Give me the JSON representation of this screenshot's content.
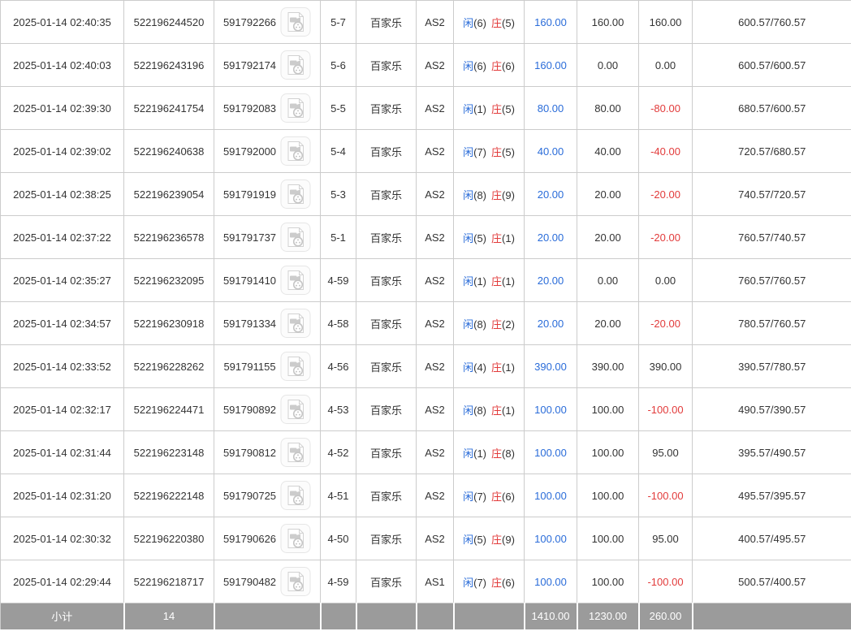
{
  "colors": {
    "accent_blue": "#2a6cd9",
    "loss_red": "#e23b3b",
    "subtotal_bg": "#9b9b9b",
    "row_border": "#cccccc",
    "text": "#333333"
  },
  "icons": {
    "row_video": "video-playback-icon"
  },
  "table": {
    "rows": [
      {
        "time": "2025-01-14 02:40:35",
        "order_no": "522196244520",
        "session_id": "591792266",
        "round": "5-7",
        "game": "百家乐",
        "table_code": "AS2",
        "result": {
          "player_label": "闲",
          "player_score": "(6)",
          "banker_label": "庄",
          "banker_score": "(5)"
        },
        "bet": "160.00",
        "valid_bet": "160.00",
        "win_loss": "160.00",
        "balance": "600.57/760.57"
      },
      {
        "time": "2025-01-14 02:40:03",
        "order_no": "522196243196",
        "session_id": "591792174",
        "round": "5-6",
        "game": "百家乐",
        "table_code": "AS2",
        "result": {
          "player_label": "闲",
          "player_score": "(6)",
          "banker_label": "庄",
          "banker_score": "(6)"
        },
        "bet": "160.00",
        "valid_bet": "0.00",
        "win_loss": "0.00",
        "balance": "600.57/600.57"
      },
      {
        "time": "2025-01-14 02:39:30",
        "order_no": "522196241754",
        "session_id": "591792083",
        "round": "5-5",
        "game": "百家乐",
        "table_code": "AS2",
        "result": {
          "player_label": "闲",
          "player_score": "(1)",
          "banker_label": "庄",
          "banker_score": "(5)"
        },
        "bet": "80.00",
        "valid_bet": "80.00",
        "win_loss": "-80.00",
        "balance": "680.57/600.57"
      },
      {
        "time": "2025-01-14 02:39:02",
        "order_no": "522196240638",
        "session_id": "591792000",
        "round": "5-4",
        "game": "百家乐",
        "table_code": "AS2",
        "result": {
          "player_label": "闲",
          "player_score": "(7)",
          "banker_label": "庄",
          "banker_score": "(5)"
        },
        "bet": "40.00",
        "valid_bet": "40.00",
        "win_loss": "-40.00",
        "balance": "720.57/680.57"
      },
      {
        "time": "2025-01-14 02:38:25",
        "order_no": "522196239054",
        "session_id": "591791919",
        "round": "5-3",
        "game": "百家乐",
        "table_code": "AS2",
        "result": {
          "player_label": "闲",
          "player_score": "(8)",
          "banker_label": "庄",
          "banker_score": "(9)"
        },
        "bet": "20.00",
        "valid_bet": "20.00",
        "win_loss": "-20.00",
        "balance": "740.57/720.57"
      },
      {
        "time": "2025-01-14 02:37:22",
        "order_no": "522196236578",
        "session_id": "591791737",
        "round": "5-1",
        "game": "百家乐",
        "table_code": "AS2",
        "result": {
          "player_label": "闲",
          "player_score": "(5)",
          "banker_label": "庄",
          "banker_score": "(1)"
        },
        "bet": "20.00",
        "valid_bet": "20.00",
        "win_loss": "-20.00",
        "balance": "760.57/740.57"
      },
      {
        "time": "2025-01-14 02:35:27",
        "order_no": "522196232095",
        "session_id": "591791410",
        "round": "4-59",
        "game": "百家乐",
        "table_code": "AS2",
        "result": {
          "player_label": "闲",
          "player_score": "(1)",
          "banker_label": "庄",
          "banker_score": "(1)"
        },
        "bet": "20.00",
        "valid_bet": "0.00",
        "win_loss": "0.00",
        "balance": "760.57/760.57"
      },
      {
        "time": "2025-01-14 02:34:57",
        "order_no": "522196230918",
        "session_id": "591791334",
        "round": "4-58",
        "game": "百家乐",
        "table_code": "AS2",
        "result": {
          "player_label": "闲",
          "player_score": "(8)",
          "banker_label": "庄",
          "banker_score": "(2)"
        },
        "bet": "20.00",
        "valid_bet": "20.00",
        "win_loss": "-20.00",
        "balance": "780.57/760.57"
      },
      {
        "time": "2025-01-14 02:33:52",
        "order_no": "522196228262",
        "session_id": "591791155",
        "round": "4-56",
        "game": "百家乐",
        "table_code": "AS2",
        "result": {
          "player_label": "闲",
          "player_score": "(4)",
          "banker_label": "庄",
          "banker_score": "(1)"
        },
        "bet": "390.00",
        "valid_bet": "390.00",
        "win_loss": "390.00",
        "balance": "390.57/780.57"
      },
      {
        "time": "2025-01-14 02:32:17",
        "order_no": "522196224471",
        "session_id": "591790892",
        "round": "4-53",
        "game": "百家乐",
        "table_code": "AS2",
        "result": {
          "player_label": "闲",
          "player_score": "(8)",
          "banker_label": "庄",
          "banker_score": "(1)"
        },
        "bet": "100.00",
        "valid_bet": "100.00",
        "win_loss": "-100.00",
        "balance": "490.57/390.57"
      },
      {
        "time": "2025-01-14 02:31:44",
        "order_no": "522196223148",
        "session_id": "591790812",
        "round": "4-52",
        "game": "百家乐",
        "table_code": "AS2",
        "result": {
          "player_label": "闲",
          "player_score": "(1)",
          "banker_label": "庄",
          "banker_score": "(8)"
        },
        "bet": "100.00",
        "valid_bet": "100.00",
        "win_loss": "95.00",
        "balance": "395.57/490.57"
      },
      {
        "time": "2025-01-14 02:31:20",
        "order_no": "522196222148",
        "session_id": "591790725",
        "round": "4-51",
        "game": "百家乐",
        "table_code": "AS2",
        "result": {
          "player_label": "闲",
          "player_score": "(7)",
          "banker_label": "庄",
          "banker_score": "(6)"
        },
        "bet": "100.00",
        "valid_bet": "100.00",
        "win_loss": "-100.00",
        "balance": "495.57/395.57"
      },
      {
        "time": "2025-01-14 02:30:32",
        "order_no": "522196220380",
        "session_id": "591790626",
        "round": "4-50",
        "game": "百家乐",
        "table_code": "AS2",
        "result": {
          "player_label": "闲",
          "player_score": "(5)",
          "banker_label": "庄",
          "banker_score": "(9)"
        },
        "bet": "100.00",
        "valid_bet": "100.00",
        "win_loss": "95.00",
        "balance": "400.57/495.57"
      },
      {
        "time": "2025-01-14 02:29:44",
        "order_no": "522196218717",
        "session_id": "591790482",
        "round": "4-59",
        "game": "百家乐",
        "table_code": "AS1",
        "result": {
          "player_label": "闲",
          "player_score": "(7)",
          "banker_label": "庄",
          "banker_score": "(6)"
        },
        "bet": "100.00",
        "valid_bet": "100.00",
        "win_loss": "-100.00",
        "balance": "500.57/400.57"
      }
    ],
    "subtotal": {
      "label": "小计",
      "count": "14",
      "bet_total": "1410.00",
      "valid_total": "1230.00",
      "win_loss_total": "260.00"
    }
  }
}
